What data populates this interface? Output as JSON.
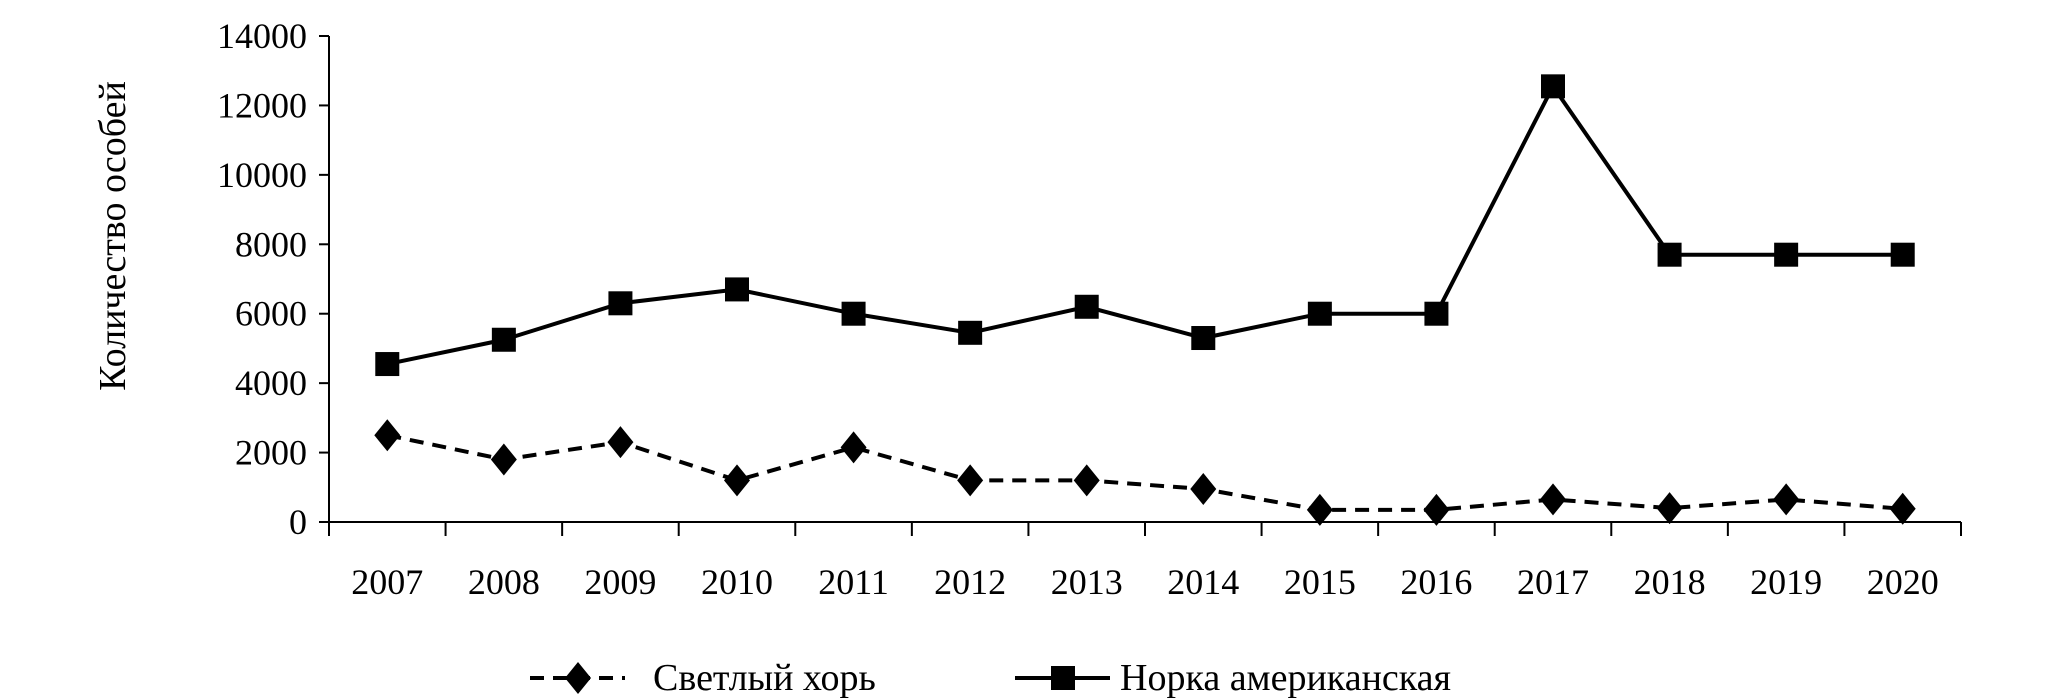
{
  "chart_data": {
    "type": "line",
    "title": "",
    "xlabel": "",
    "ylabel": "Количество особей",
    "ylim": [
      0,
      14000
    ],
    "yticks": [
      0,
      2000,
      4000,
      6000,
      8000,
      10000,
      12000,
      14000
    ],
    "grid": false,
    "legend_position": "bottom",
    "categories": [
      "2007",
      "2008",
      "2009",
      "2010",
      "2011",
      "2012",
      "2013",
      "2014",
      "2015",
      "2016",
      "2017",
      "2018",
      "2019",
      "2020"
    ],
    "series": [
      {
        "name": "Светлый хорь",
        "marker": "diamond",
        "line": "dashed",
        "color": "#000000",
        "values": [
          2500,
          1800,
          2300,
          1200,
          2150,
          1200,
          1200,
          950,
          350,
          350,
          650,
          400,
          650,
          380
        ]
      },
      {
        "name": "Норка американская",
        "marker": "square",
        "line": "solid",
        "color": "#000000",
        "values": [
          4550,
          5250,
          6300,
          6700,
          6000,
          5450,
          6200,
          5300,
          6000,
          6000,
          12550,
          7700,
          7700,
          7700
        ]
      }
    ]
  }
}
